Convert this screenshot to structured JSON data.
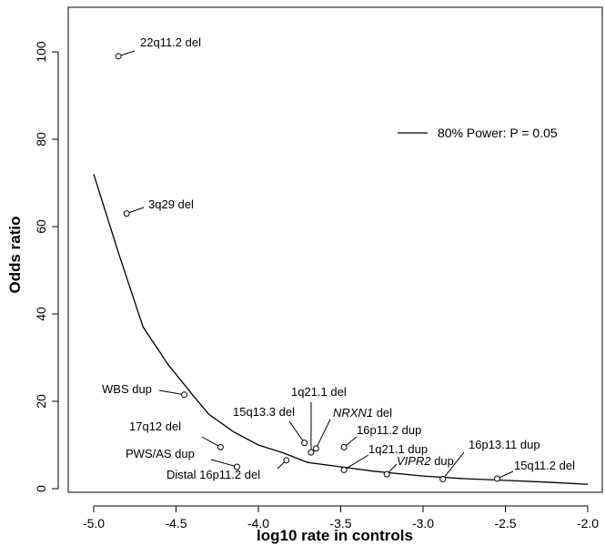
{
  "chart_data": {
    "type": "scatter",
    "title": "",
    "xlabel": "log10 rate in controls",
    "ylabel": "Odds ratio",
    "xlim": [
      -5.0,
      -2.0
    ],
    "ylim": [
      0,
      110
    ],
    "x_ticks": [
      {
        "value": -5.0,
        "label": "-5.0"
      },
      {
        "value": -4.5,
        "label": "-4.5"
      },
      {
        "value": -4.0,
        "label": "-4.0"
      },
      {
        "value": -3.5,
        "label": "-3.5"
      },
      {
        "value": -3.0,
        "label": "-3.0"
      },
      {
        "value": -2.5,
        "label": "-2.5"
      },
      {
        "value": -2.0,
        "label": "-2.0"
      }
    ],
    "y_ticks": [
      {
        "value": 0,
        "label": "0"
      },
      {
        "value": 20,
        "label": "20"
      },
      {
        "value": 40,
        "label": "40"
      },
      {
        "value": 60,
        "label": "60"
      },
      {
        "value": 80,
        "label": "80"
      },
      {
        "value": 100,
        "label": "100"
      }
    ],
    "grid": false,
    "legend": {
      "position": "right",
      "entries": [
        {
          "label": "80% Power: P = 0.05",
          "style": "line"
        }
      ]
    },
    "power_curve": {
      "x": [
        -5.0,
        -4.85,
        -4.7,
        -4.55,
        -4.4,
        -4.3,
        -4.15,
        -4.0,
        -3.85,
        -3.7,
        -3.5,
        -3.3,
        -3.0,
        -2.75,
        -2.5,
        -2.25,
        -2.0
      ],
      "y": [
        72,
        54,
        37,
        28.5,
        21.5,
        17,
        13,
        10,
        8.2,
        6,
        5,
        4,
        2.9,
        2.3,
        1.9,
        1.5,
        1.0
      ]
    },
    "points": [
      {
        "label": "22q11.2 del",
        "x": -4.85,
        "y": 99,
        "italic": false
      },
      {
        "label": "3q29 del",
        "x": -4.8,
        "y": 63,
        "italic": false
      },
      {
        "label": "WBS dup",
        "x": -4.45,
        "y": 21.5,
        "italic": false
      },
      {
        "label": "17q12 del",
        "x": -4.23,
        "y": 9.5,
        "italic": false
      },
      {
        "label": "PWS/AS dup",
        "x": -4.13,
        "y": 5,
        "italic": false
      },
      {
        "label": "Distal 16p11.2 del",
        "x": -3.83,
        "y": 6.5,
        "italic": false
      },
      {
        "label": "15q13.3 del",
        "x": -3.72,
        "y": 10.5,
        "italic": false
      },
      {
        "label": "1q21.1 del",
        "x": -3.68,
        "y": 8.3,
        "italic": false
      },
      {
        "label": "NRXN1",
        "suffix": " del",
        "x": -3.65,
        "y": 9.2,
        "italic": true
      },
      {
        "label": "16p11.2 dup",
        "x": -3.48,
        "y": 9.5,
        "italic": false
      },
      {
        "label": "1q21.1 dup",
        "x": -3.48,
        "y": 4.3,
        "italic": false
      },
      {
        "label": "VIPR2",
        "suffix": " dup",
        "x": -3.22,
        "y": 3.3,
        "italic": true
      },
      {
        "label": "16p13.11 dup",
        "x": -2.88,
        "y": 2.2,
        "italic": false
      },
      {
        "label": "15q11.2 del",
        "x": -2.55,
        "y": 2.3,
        "italic": false
      }
    ]
  }
}
